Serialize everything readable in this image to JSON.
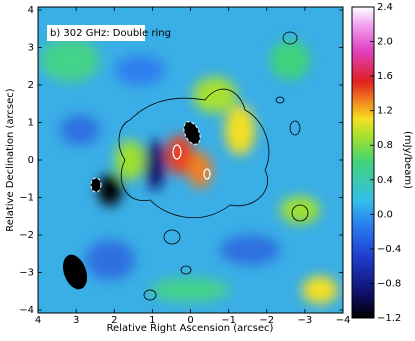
{
  "chart_data": {
    "type": "image",
    "annotation": "b) 302 GHz: Double ring",
    "xlabel": "Relative Right Ascension (arcsec)",
    "ylabel": "Relative Declination (arcsec)",
    "colorbar_label": "(mJy/beam)",
    "xlim": [
      4,
      -4
    ],
    "xticks": [
      4,
      3,
      2,
      1,
      0,
      {
        "value": -1,
        "label": "−1"
      },
      {
        "value": -2,
        "label": "−2"
      },
      {
        "value": -3,
        "label": "−3"
      },
      {
        "value": -4,
        "label": "−4"
      }
    ],
    "ylim": [
      -4.08,
      4.08
    ],
    "yticks": [
      {
        "value": -4,
        "label": "−4"
      },
      {
        "value": -3,
        "label": "−3"
      },
      {
        "value": -2,
        "label": "−2"
      },
      {
        "value": -1,
        "label": "−1"
      },
      0,
      1,
      2,
      3,
      4
    ],
    "clim": [
      -1.2,
      2.4
    ],
    "cticks": [
      {
        "value": -1.2,
        "label": "−1.2"
      },
      {
        "value": -0.8,
        "label": "−0.8"
      },
      {
        "value": -0.4,
        "label": "−0.4"
      },
      {
        "value": 0,
        "label": "0.0"
      },
      0.4,
      0.8,
      1.2,
      1.6,
      {
        "value": 2,
        "label": "2.0"
      },
      2.4
    ]
  }
}
